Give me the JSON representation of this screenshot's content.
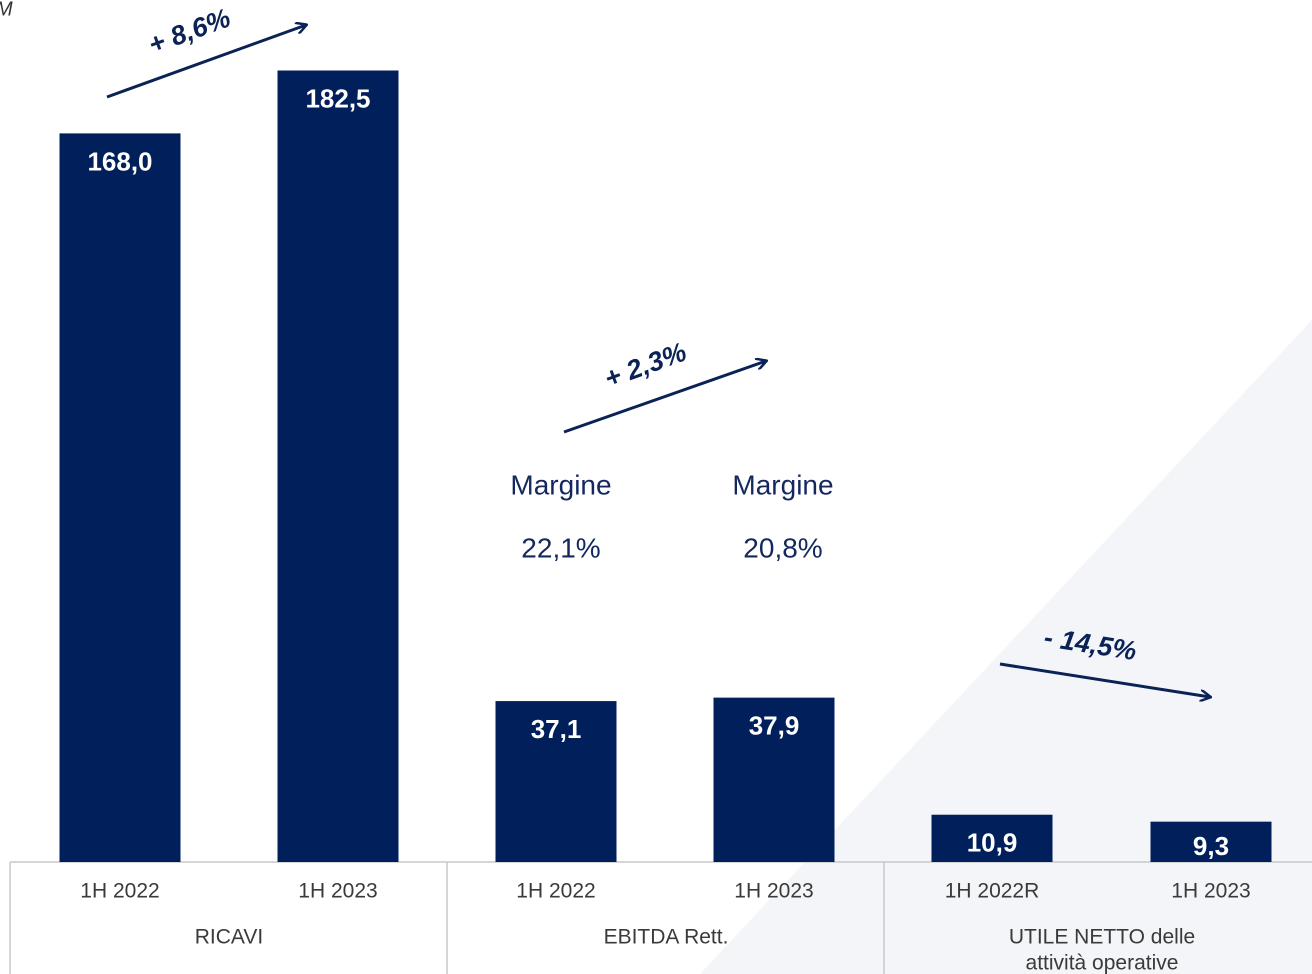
{
  "chart_data": {
    "type": "bar",
    "unit_label": "M",
    "categories": [
      "1H 2022",
      "1H 2023",
      "1H 2022",
      "1H 2023",
      "1H 2022R",
      "1H 2023"
    ],
    "values": [
      168.0,
      182.5,
      37.1,
      37.9,
      10.9,
      9.3
    ],
    "value_labels": [
      "168,0",
      "182,5",
      "37,1",
      "37,9",
      "10,9",
      "9,3"
    ],
    "color": "#001f5b",
    "groups": [
      {
        "lines": [
          "RICAVI"
        ]
      },
      {
        "lines": [
          "EBITDA Rett."
        ]
      },
      {
        "lines": [
          "UTILE NETTO delle",
          "attività operative"
        ]
      }
    ],
    "annotations": [
      "+ 8,6%",
      "+ 2,3%",
      "- 14,5%"
    ],
    "margins": [
      {
        "label": "Margine",
        "value_label": "22,1%"
      },
      {
        "label": "Margine",
        "value_label": "20,8%"
      }
    ]
  }
}
